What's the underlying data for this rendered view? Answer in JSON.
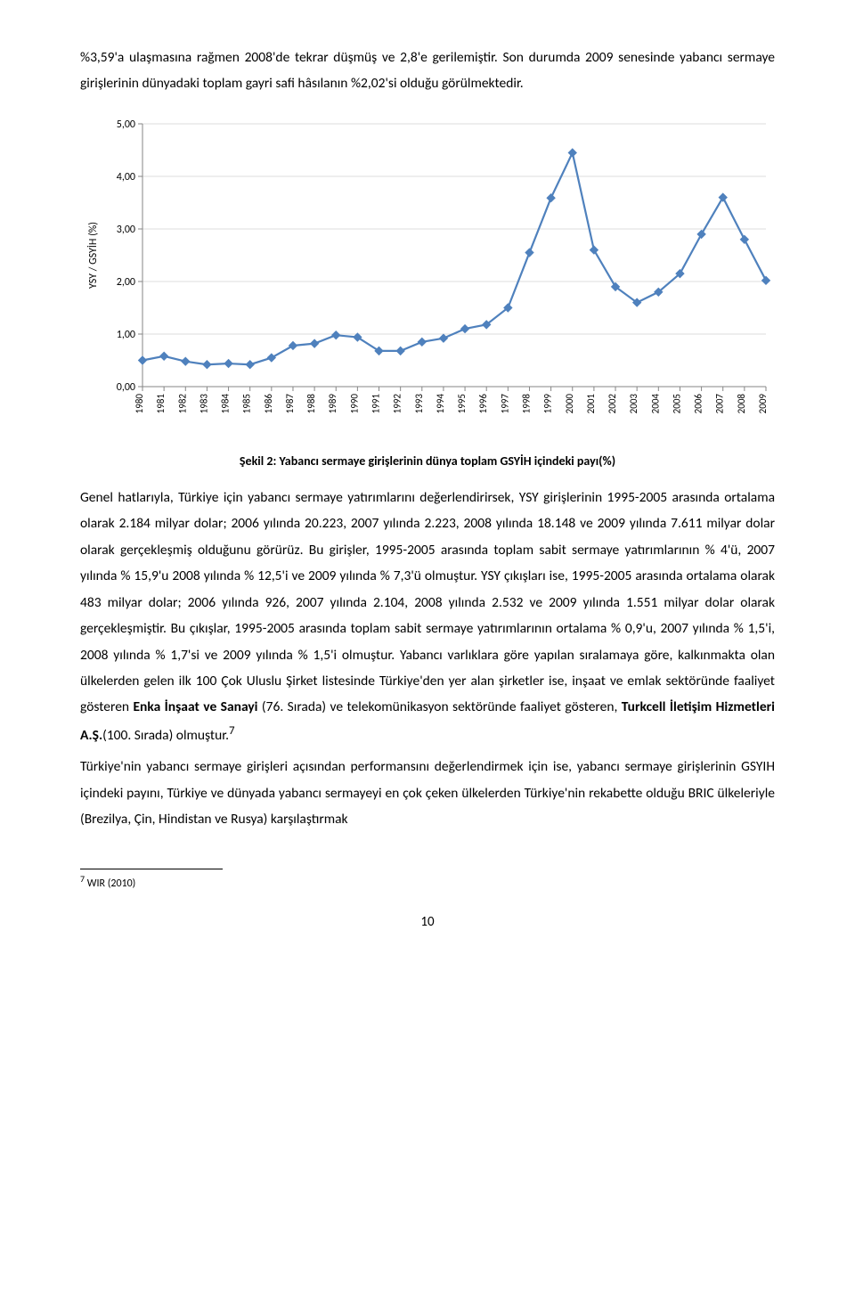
{
  "paragraph_top": "%3,59'a ulaşmasına rağmen 2008'de tekrar düşmüş ve 2,8'e gerilemiştir. Son durumda 2009 senesinde yabancı sermaye girişlerinin dünyadaki toplam gayri safi hâsılanın %2,02'si olduğu görülmektedir.",
  "chart": {
    "type": "line",
    "years": [
      1980,
      1981,
      1982,
      1983,
      1984,
      1985,
      1986,
      1987,
      1988,
      1989,
      1990,
      1991,
      1992,
      1993,
      1994,
      1995,
      1996,
      1997,
      1998,
      1999,
      2000,
      2001,
      2002,
      2003,
      2004,
      2005,
      2006,
      2007,
      2008,
      2009
    ],
    "values": [
      0.5,
      0.58,
      0.48,
      0.42,
      0.44,
      0.42,
      0.55,
      0.78,
      0.82,
      0.98,
      0.94,
      0.68,
      0.68,
      0.85,
      0.92,
      1.1,
      1.18,
      1.5,
      2.55,
      3.59,
      4.45,
      2.6,
      1.9,
      1.6,
      1.8,
      2.15,
      2.9,
      3.6,
      2.8,
      2.02
    ],
    "ylim": [
      0,
      5.0
    ],
    "ytick_step": 1.0,
    "ytick_labels": [
      "0,00",
      "1,00",
      "2,00",
      "3,00",
      "4,00",
      "5,00"
    ],
    "ylabel": "YSY / GSYİH (%)",
    "line_color": "#4f81bd",
    "marker_color": "#4f81bd",
    "marker_size": 4.5,
    "line_width": 2.2,
    "grid_color": "#dcdcdc",
    "axis_color": "#868686",
    "background_color": "#ffffff",
    "tick_fontsize": 12,
    "ylabel_fontsize": 12,
    "xlabel_fontsize": 11
  },
  "chart_caption": "Şekil 2: Yabancı sermaye girişlerinin dünya toplam GSYİH içindeki payı(%)",
  "body_paragraph_1a": "Genel hatlarıyla, Türkiye için yabancı sermaye yatırımlarını değerlendirirsek, YSY girişlerinin 1995-2005 arasında ortalama olarak 2.184 milyar dolar; 2006 yılında 20.223, 2007 yılında 2.223, 2008 yılında 18.148 ve 2009 yılında 7.611 milyar dolar olarak gerçekleşmiş olduğunu görürüz. Bu girişler, 1995-2005 arasında toplam sabit sermaye yatırımlarının % 4'ü, 2007 yılında % 15,9'u 2008 yılında % 12,5'i ve 2009 yılında % 7,3'ü olmuştur. YSY çıkışları ise, 1995-2005 arasında ortalama olarak 483 milyar dolar; 2006 yılında 926, 2007 yılında 2.104, 2008 yılında 2.532 ve 2009 yılında 1.551 milyar dolar olarak gerçekleşmiştir. Bu çıkışlar, 1995-2005 arasında toplam sabit sermaye yatırımlarının ortalama  % 0,9'u, 2007 yılında % 1,5'i, 2008 yılında % 1,7'si ve 2009 yılında % 1,5'i olmuştur. Yabancı varlıklara göre yapılan sıralamaya göre, kalkınmakta olan ülkelerden gelen ilk 100 Çok Uluslu Şirket listesinde Türkiye'den yer alan şirketler ise, inşaat ve emlak sektöründe faaliyet gösteren ",
  "body_bold_1": "Enka İnşaat ve Sanayi",
  "body_paragraph_1b": " (76. Sırada) ve telekomünikasyon sektöründe faaliyet gösteren, ",
  "body_bold_2": "Turkcell İletişim Hizmetleri A.Ş.",
  "body_paragraph_1c": "(100. Sırada) olmuştur.",
  "footnote_ref": "7",
  "body_paragraph_2": "Türkiye'nin yabancı sermaye girişleri açısından performansını değerlendirmek için ise, yabancı sermaye girişlerinin GSYIH içindeki payını, Türkiye ve dünyada yabancı sermayeyi en çok çeken ülkelerden Türkiye'nin rekabette olduğu BRIC ülkeleriyle (Brezilya, Çin, Hindistan ve Rusya) karşılaştırmak",
  "footnote_text": " WIR (2010)",
  "page_number": "10"
}
